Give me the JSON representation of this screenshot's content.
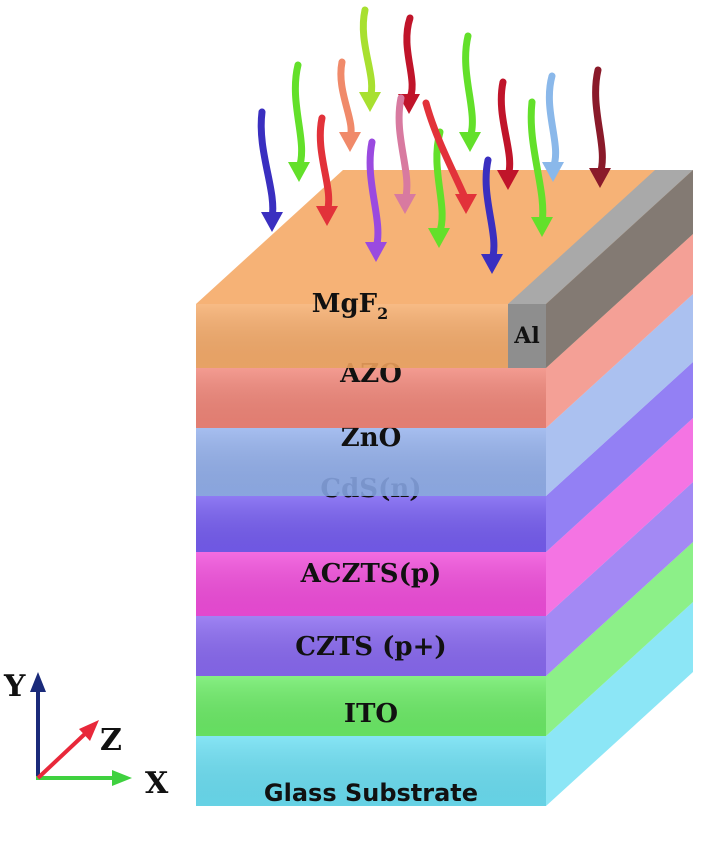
{
  "layers": [
    {
      "key": "mgf2",
      "label": "MgF",
      "sub": "2",
      "color": "#f5a55e"
    },
    {
      "key": "azo",
      "label": "AZO",
      "sub": "",
      "color": "#f07c6e"
    },
    {
      "key": "zno",
      "label": "ZnO",
      "sub": "",
      "color": "#8aa9ea"
    },
    {
      "key": "cds",
      "label": "CdS(n)",
      "sub": "",
      "color": "#6a4ff0"
    },
    {
      "key": "aczts",
      "label": "ACZTS(p)",
      "sub": "",
      "color": "#f03ed8"
    },
    {
      "key": "czts",
      "label": "CZTS (p+)",
      "sub": "",
      "color": "#7f5cf0"
    },
    {
      "key": "ito",
      "label": "ITO",
      "sub": "",
      "color": "#5fea5a"
    },
    {
      "key": "glass",
      "label": "Glass Substrate",
      "sub": "",
      "color": "#5fdcf2"
    }
  ],
  "contact": {
    "label": "Al",
    "color": "#8e8e8e"
  },
  "axes": {
    "y_label": "Y",
    "z_label": "Z",
    "x_label": "X",
    "y_color": "#1a2a7a",
    "z_color": "#e8283a",
    "x_color": "#3fd13f"
  },
  "light_rays": {
    "colors": [
      "#3a2fc0",
      "#63e02a",
      "#e2323a",
      "#9a4ae0",
      "#d87aa0",
      "#a8e030",
      "#f08a6a",
      "#c0142a",
      "#8a1a2a",
      "#8ab8ea"
    ]
  }
}
